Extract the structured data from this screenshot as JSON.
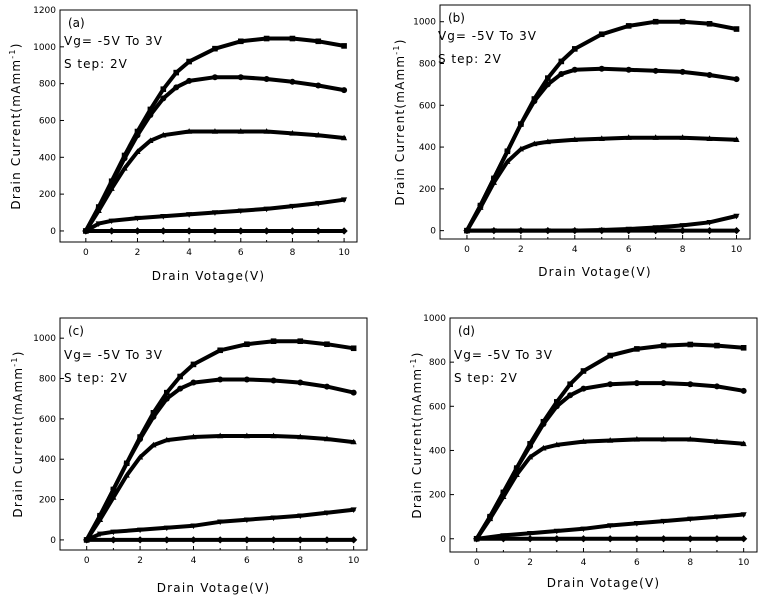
{
  "chart_data": [
    {
      "type": "line",
      "panel_label": "(a)",
      "xlabel": "Drain Votage(V)",
      "ylabel": "Drain Current(mAmm",
      "ylabel_sup": "-1",
      "annotations": [
        "Vg= -5V To 3V",
        "S tep: 2V"
      ],
      "xlim": [
        -1,
        10.5
      ],
      "ylim": [
        -60,
        1200
      ],
      "xticks": [
        "0",
        "2",
        "4",
        "6",
        "8",
        "10"
      ],
      "yticks": [
        "0",
        "200",
        "400",
        "600",
        "800",
        "1000",
        "1200"
      ],
      "series": [
        {
          "marker": "square",
          "x": [
            0,
            0.5,
            1,
            1.5,
            2,
            2.5,
            3,
            3.5,
            4,
            5,
            6,
            7,
            8,
            9,
            10
          ],
          "y": [
            0,
            130,
            270,
            410,
            540,
            660,
            770,
            860,
            920,
            990,
            1030,
            1045,
            1045,
            1030,
            1005
          ]
        },
        {
          "marker": "circle",
          "x": [
            0,
            0.5,
            1,
            1.5,
            2,
            2.5,
            3,
            3.5,
            4,
            5,
            6,
            7,
            8,
            9,
            10
          ],
          "y": [
            0,
            125,
            260,
            395,
            520,
            630,
            720,
            780,
            815,
            835,
            835,
            825,
            810,
            790,
            765
          ]
        },
        {
          "marker": "triangle-up",
          "x": [
            0,
            0.5,
            1,
            1.5,
            2,
            2.5,
            3,
            4,
            5,
            6,
            7,
            8,
            9,
            10
          ],
          "y": [
            0,
            110,
            230,
            340,
            430,
            490,
            520,
            540,
            540,
            540,
            540,
            530,
            520,
            505
          ]
        },
        {
          "marker": "triangle-down",
          "x": [
            0,
            0.5,
            1,
            2,
            3,
            4,
            5,
            6,
            7,
            8,
            9,
            10
          ],
          "y": [
            0,
            40,
            55,
            70,
            80,
            90,
            100,
            110,
            120,
            135,
            150,
            170
          ]
        },
        {
          "marker": "diamond",
          "x": [
            0,
            1,
            2,
            3,
            4,
            5,
            6,
            7,
            8,
            9,
            10
          ],
          "y": [
            0,
            0,
            0,
            0,
            0,
            0,
            0,
            0,
            0,
            0,
            0
          ]
        }
      ]
    },
    {
      "type": "line",
      "panel_label": "(b)",
      "xlabel": "Drain Votage(V)",
      "ylabel": "Drain Current(mAmm",
      "ylabel_sup": "-1",
      "annotations": [
        "Vg= -5V To 3V",
        "S tep: 2V"
      ],
      "xlim": [
        -1,
        10.5
      ],
      "ylim": [
        -40,
        1080
      ],
      "xticks": [
        "0",
        "2",
        "4",
        "6",
        "8",
        "10"
      ],
      "yticks": [
        "0",
        "200",
        "400",
        "600",
        "800",
        "1000"
      ],
      "series": [
        {
          "marker": "square",
          "x": [
            0,
            0.5,
            1,
            1.5,
            2,
            2.5,
            3,
            3.5,
            4,
            5,
            6,
            7,
            8,
            9,
            10
          ],
          "y": [
            0,
            120,
            250,
            380,
            510,
            630,
            730,
            810,
            870,
            940,
            980,
            1000,
            1000,
            990,
            965
          ]
        },
        {
          "marker": "circle",
          "x": [
            0,
            0.5,
            1,
            1.5,
            2,
            2.5,
            3,
            3.5,
            4,
            5,
            6,
            7,
            8,
            9,
            10
          ],
          "y": [
            0,
            120,
            250,
            380,
            510,
            620,
            700,
            750,
            770,
            775,
            770,
            765,
            760,
            745,
            725
          ]
        },
        {
          "marker": "triangle-up",
          "x": [
            0,
            0.5,
            1,
            1.5,
            2,
            2.5,
            3,
            4,
            5,
            6,
            7,
            8,
            9,
            10
          ],
          "y": [
            0,
            110,
            230,
            330,
            390,
            415,
            425,
            435,
            440,
            445,
            445,
            445,
            440,
            435
          ]
        },
        {
          "marker": "triangle-down",
          "x": [
            0,
            1,
            2,
            3,
            4,
            5,
            6,
            7,
            8,
            9,
            10
          ],
          "y": [
            0,
            0,
            0,
            0,
            0,
            3,
            8,
            15,
            25,
            40,
            70
          ]
        },
        {
          "marker": "diamond",
          "x": [
            0,
            1,
            2,
            3,
            4,
            5,
            6,
            7,
            8,
            9,
            10
          ],
          "y": [
            0,
            0,
            0,
            0,
            0,
            0,
            0,
            0,
            0,
            0,
            0
          ]
        }
      ]
    },
    {
      "type": "line",
      "panel_label": "(c)",
      "xlabel": "Drain Votage(V)",
      "ylabel": "Drain Current(mAmm",
      "ylabel_sup": "-1",
      "annotations": [
        "Vg= -5V To 3V",
        "S tep: 2V"
      ],
      "xlim": [
        -1,
        10.5
      ],
      "ylim": [
        -50,
        1100
      ],
      "xticks": [
        "0",
        "2",
        "4",
        "6",
        "8",
        "10"
      ],
      "yticks": [
        "0",
        "200",
        "400",
        "600",
        "800",
        "1000"
      ],
      "series": [
        {
          "marker": "square",
          "x": [
            0,
            0.5,
            1,
            1.5,
            2,
            2.5,
            3,
            3.5,
            4,
            5,
            6,
            7,
            8,
            9,
            10
          ],
          "y": [
            0,
            120,
            250,
            380,
            510,
            630,
            730,
            810,
            870,
            940,
            970,
            985,
            985,
            970,
            950
          ]
        },
        {
          "marker": "circle",
          "x": [
            0,
            0.5,
            1,
            1.5,
            2,
            2.5,
            3,
            3.5,
            4,
            5,
            6,
            7,
            8,
            9,
            10
          ],
          "y": [
            0,
            120,
            250,
            380,
            500,
            610,
            700,
            750,
            780,
            795,
            795,
            790,
            780,
            760,
            730
          ]
        },
        {
          "marker": "triangle-up",
          "x": [
            0,
            0.5,
            1,
            1.5,
            2,
            2.5,
            3,
            4,
            5,
            6,
            7,
            8,
            9,
            10
          ],
          "y": [
            0,
            100,
            210,
            320,
            410,
            470,
            495,
            510,
            515,
            515,
            515,
            510,
            500,
            485
          ]
        },
        {
          "marker": "triangle-down",
          "x": [
            0,
            0.5,
            1,
            2,
            3,
            4,
            5,
            6,
            7,
            8,
            9,
            10
          ],
          "y": [
            0,
            30,
            40,
            50,
            60,
            70,
            90,
            100,
            110,
            120,
            135,
            150
          ]
        },
        {
          "marker": "diamond",
          "x": [
            0,
            1,
            2,
            3,
            4,
            5,
            6,
            7,
            8,
            9,
            10
          ],
          "y": [
            0,
            0,
            0,
            0,
            0,
            0,
            0,
            0,
            0,
            0,
            0
          ]
        }
      ]
    },
    {
      "type": "line",
      "panel_label": "(d)",
      "xlabel": "Drain Votage(V)",
      "ylabel": "Drain Current(mAmm",
      "ylabel_sup": "-1",
      "annotations": [
        "Vg= -5V To 3V",
        "S tep: 2V"
      ],
      "xlim": [
        -1,
        10.5
      ],
      "ylim": [
        -60,
        1000
      ],
      "xticks": [
        "0",
        "2",
        "4",
        "6",
        "8",
        "10"
      ],
      "yticks": [
        "0",
        "200",
        "400",
        "600",
        "800",
        "1000"
      ],
      "series": [
        {
          "marker": "square",
          "x": [
            0,
            0.5,
            1,
            1.5,
            2,
            2.5,
            3,
            3.5,
            4,
            5,
            6,
            7,
            8,
            9,
            10
          ],
          "y": [
            0,
            100,
            210,
            320,
            430,
            530,
            620,
            700,
            760,
            830,
            860,
            875,
            880,
            875,
            865
          ]
        },
        {
          "marker": "circle",
          "x": [
            0,
            0.5,
            1,
            1.5,
            2,
            2.5,
            3,
            3.5,
            4,
            5,
            6,
            7,
            8,
            9,
            10
          ],
          "y": [
            0,
            100,
            210,
            320,
            420,
            520,
            600,
            650,
            680,
            700,
            705,
            705,
            700,
            690,
            670
          ]
        },
        {
          "marker": "triangle-up",
          "x": [
            0,
            0.5,
            1,
            1.5,
            2,
            2.5,
            3,
            4,
            5,
            6,
            7,
            8,
            9,
            10
          ],
          "y": [
            0,
            90,
            190,
            290,
            370,
            410,
            425,
            440,
            445,
            450,
            450,
            450,
            440,
            430
          ]
        },
        {
          "marker": "triangle-down",
          "x": [
            0,
            1,
            2,
            3,
            4,
            5,
            6,
            7,
            8,
            9,
            10
          ],
          "y": [
            0,
            15,
            25,
            35,
            45,
            60,
            70,
            80,
            90,
            100,
            110
          ]
        },
        {
          "marker": "diamond",
          "x": [
            0,
            1,
            2,
            3,
            4,
            5,
            6,
            7,
            8,
            9,
            10
          ],
          "y": [
            0,
            0,
            0,
            0,
            0,
            0,
            0,
            0,
            0,
            0,
            0
          ]
        }
      ]
    }
  ]
}
